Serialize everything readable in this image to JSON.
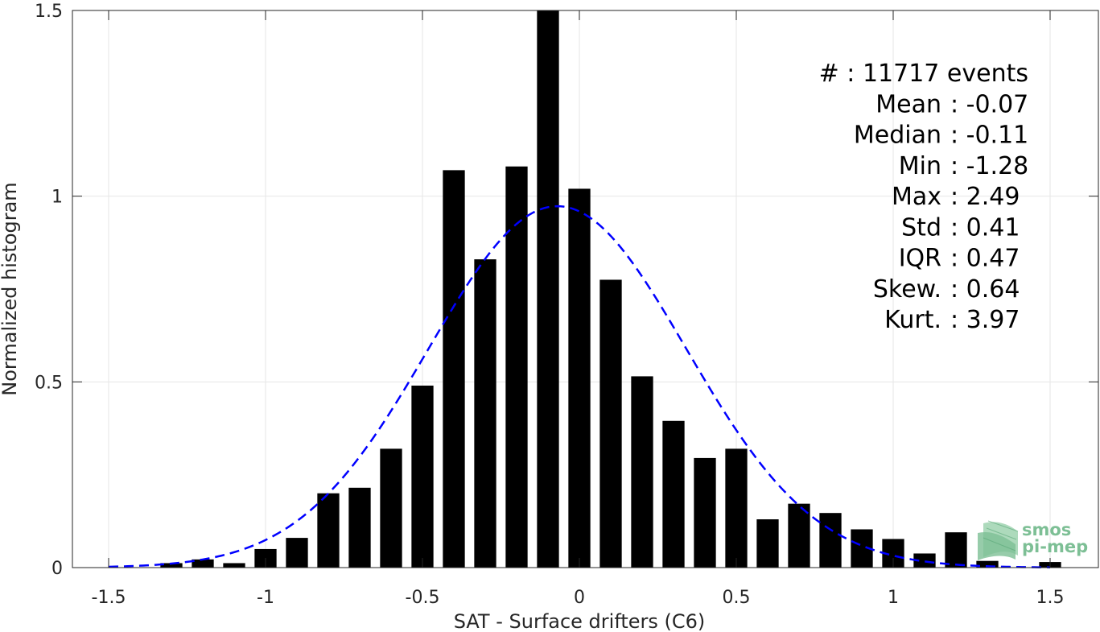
{
  "chart_data": {
    "type": "bar",
    "xlabel": "SAT - Surface drifters (C6)",
    "ylabel": "Normalized histogram",
    "xlim": [
      -1.55,
      1.55
    ],
    "ylim": [
      0,
      1.5
    ],
    "grid": true,
    "x_ticks": [
      -1.5,
      -1,
      -0.5,
      0,
      0.5,
      1,
      1.5
    ],
    "x_tick_labels": [
      "-1.5",
      "-1",
      "-0.5",
      "0",
      "0.5",
      "1",
      "1.5"
    ],
    "y_ticks": [
      0,
      0.5,
      1,
      1.5
    ],
    "y_tick_labels": [
      "0",
      "0.5",
      "1",
      "1.5"
    ],
    "bar_width": 0.07,
    "series": [
      {
        "kind": "histogram",
        "color": "#000000",
        "x": [
          -1.3,
          -1.2,
          -1.1,
          -1.0,
          -0.9,
          -0.8,
          -0.7,
          -0.6,
          -0.5,
          -0.4,
          -0.3,
          -0.2,
          -0.1,
          0.0,
          0.1,
          0.2,
          0.3,
          0.4,
          0.5,
          0.6,
          0.7,
          0.8,
          0.9,
          1.0,
          1.1,
          1.2,
          1.3,
          1.4,
          1.5
        ],
        "values": [
          0.012,
          0.022,
          0.012,
          0.05,
          0.08,
          0.2,
          0.215,
          0.32,
          0.49,
          1.07,
          0.83,
          1.08,
          1.5,
          1.02,
          0.775,
          0.515,
          0.395,
          0.295,
          0.32,
          0.13,
          0.172,
          0.147,
          0.103,
          0.077,
          0.038,
          0.095,
          0.018,
          0.0,
          0.015
        ]
      },
      {
        "kind": "gaussian-fit",
        "color": "#0000ff",
        "line_style": "dashed",
        "mean": -0.07,
        "std": 0.41,
        "x_range": [
          -1.5,
          1.5
        ]
      }
    ],
    "stats": [
      {
        "label": "#  : 11717 events",
        "align": "right-edge"
      },
      {
        "label": "Mean : -0.07",
        "align": "colon"
      },
      {
        "label": "Median : -0.11",
        "align": "colon"
      },
      {
        "label": "Min : -1.28",
        "align": "colon"
      },
      {
        "label": "Max : 2.49",
        "align": "colon"
      },
      {
        "label": "Std : 0.41",
        "align": "colon"
      },
      {
        "label": "IQR : 0.47",
        "align": "colon"
      },
      {
        "label": "Skew. : 0.64",
        "align": "colon"
      },
      {
        "label": "Kurt. : 3.97",
        "align": "colon"
      }
    ]
  },
  "logo": {
    "line1": "smos",
    "line2": "pi-mep",
    "color": "#7dbf95"
  }
}
